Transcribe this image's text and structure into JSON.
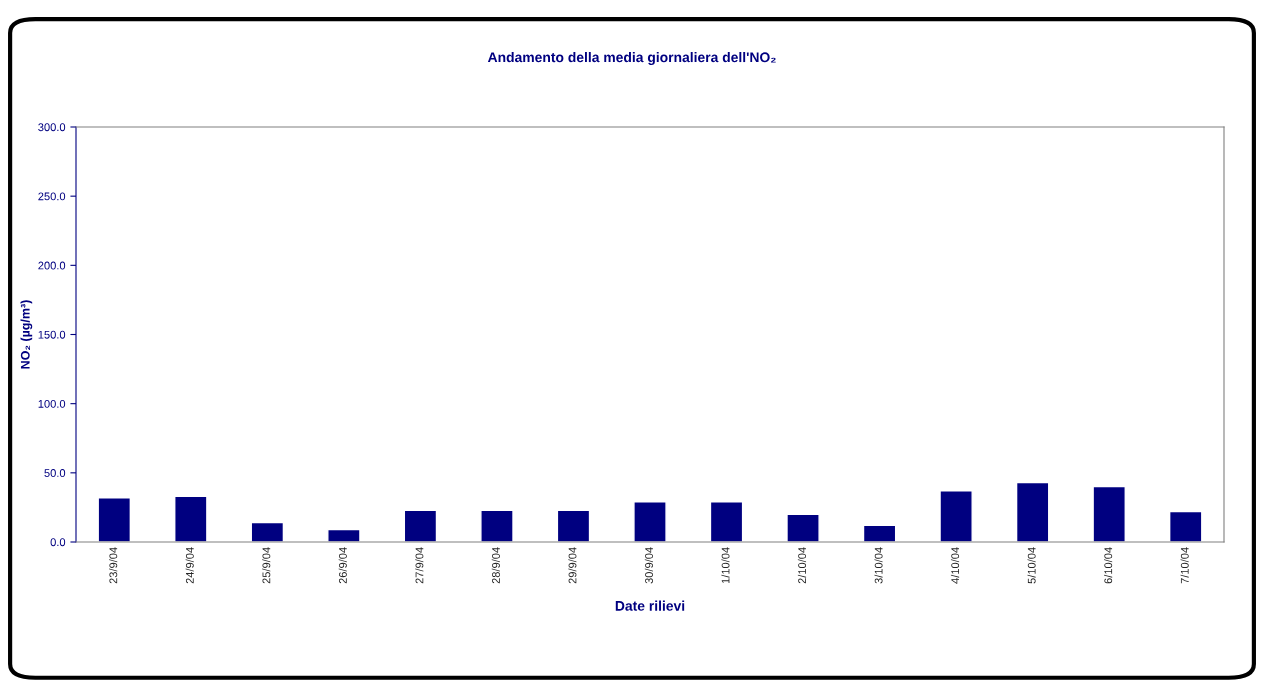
{
  "chart_data": {
    "type": "bar",
    "title": "Andamento della media giornaliera dell'NO₂",
    "xlabel": "Date rilievi",
    "ylabel": "NO₂ (µg/m³)",
    "categories": [
      "23/9/04",
      "24/9/04",
      "25/9/04",
      "26/9/04",
      "27/9/04",
      "28/9/04",
      "29/9/04",
      "30/9/04",
      "1/10/04",
      "2/10/04",
      "3/10/04",
      "4/10/04",
      "5/10/04",
      "6/10/04",
      "7/10/04"
    ],
    "values": [
      32,
      33,
      14,
      9,
      23,
      23,
      23,
      29,
      29,
      20,
      12,
      37,
      43,
      40,
      22
    ],
    "color": "#000080",
    "ylim": [
      0,
      300
    ],
    "yticks": [
      {
        "value": 0,
        "label": "0.0"
      },
      {
        "value": 50,
        "label": "50.0"
      },
      {
        "value": 100,
        "label": "100.0"
      },
      {
        "value": 150,
        "label": "150.0"
      },
      {
        "value": 200,
        "label": "200.0"
      },
      {
        "value": 250,
        "label": "250.0"
      },
      {
        "value": 300,
        "label": "300.0"
      }
    ],
    "grid": false,
    "legend": false
  }
}
